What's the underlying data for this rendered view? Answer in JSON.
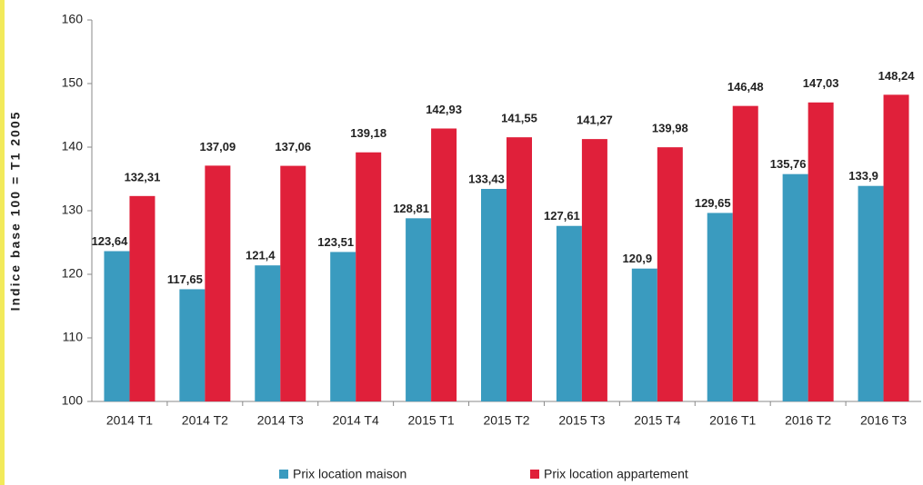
{
  "chart_data": {
    "type": "bar",
    "y_label": "Indice base 100 = T1 2005",
    "categories": [
      "2014 T1",
      "2014 T2",
      "2014 T3",
      "2014 T4",
      "2015 T1",
      "2015 T2",
      "2015 T3",
      "2015 T4",
      "2016 T1",
      "2016 T2",
      "2016 T3"
    ],
    "series": [
      {
        "name": "Prix location maison",
        "color": "#3a9bbf",
        "values": [
          123.64,
          117.65,
          121.4,
          123.51,
          128.81,
          133.43,
          127.61,
          120.9,
          129.65,
          135.76,
          133.9
        ],
        "value_labels": [
          "123,64",
          "117,65",
          "121,4",
          "123,51",
          "128,81",
          "133,43",
          "127,61",
          "120,9",
          "129,65",
          "135,76",
          "133,9"
        ]
      },
      {
        "name": "Prix location appartement",
        "color": "#e0203a",
        "values": [
          132.31,
          137.09,
          137.06,
          139.18,
          142.93,
          141.55,
          141.27,
          139.98,
          146.48,
          147.03,
          148.24
        ],
        "value_labels": [
          "132,31",
          "137,09",
          "137,06",
          "139,18",
          "142,93",
          "141,55",
          "141,27",
          "139,98",
          "146,48",
          "147,03",
          "148,24"
        ]
      }
    ],
    "ylim": [
      100,
      160
    ],
    "yticks": [
      100,
      110,
      120,
      130,
      140,
      150,
      160
    ],
    "grid": false,
    "legend": "bottom"
  }
}
